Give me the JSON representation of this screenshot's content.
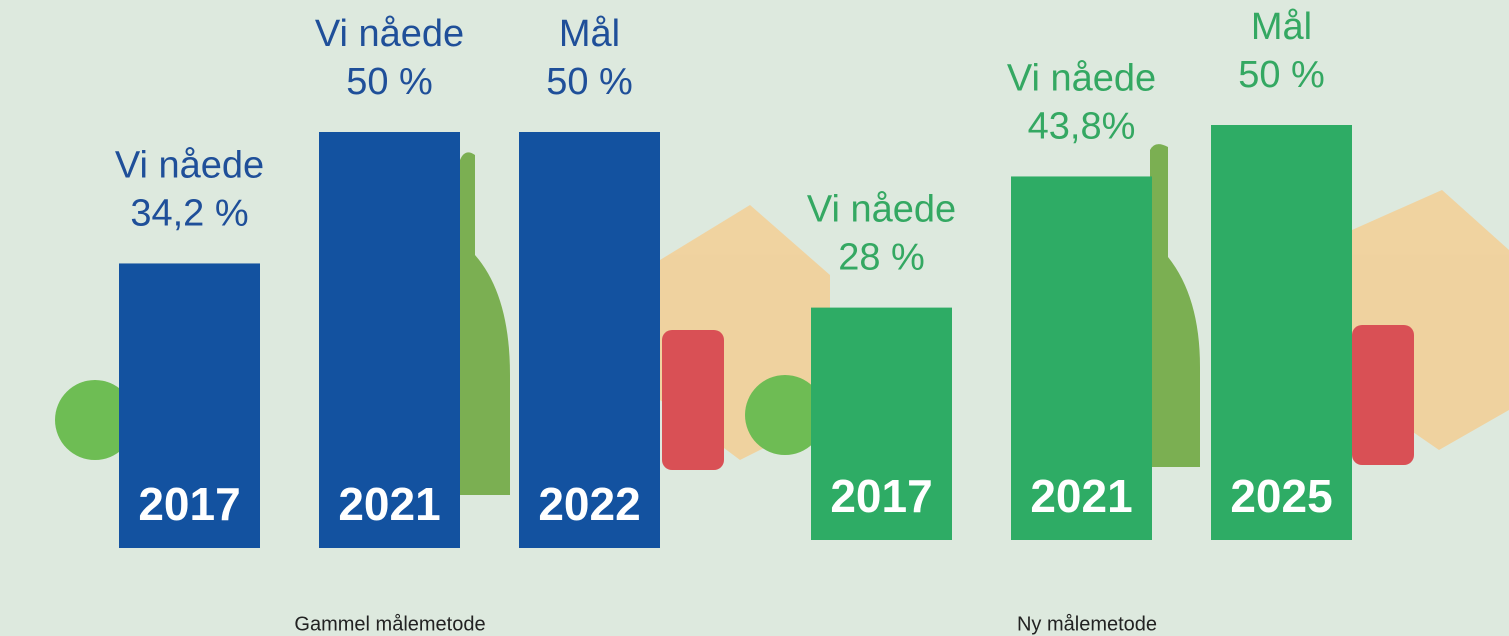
{
  "chart_data": [
    {
      "type": "bar",
      "xlabel": "Gammel målemetode",
      "color": "#1352a0",
      "label_color": "#1f4f99",
      "categories": [
        "2017",
        "2021",
        "2022"
      ],
      "annotations": [
        "Vi nåede",
        "Vi nåede",
        "Mål"
      ],
      "values": [
        34.2,
        50,
        50
      ],
      "value_labels": [
        "34,2 %",
        "50 %",
        "50 %"
      ]
    },
    {
      "type": "bar",
      "xlabel": "Ny målemetode",
      "color": "#2eac65",
      "label_color": "#34a862",
      "categories": [
        "2017",
        "2021",
        "2025"
      ],
      "annotations": [
        "Vi nåede",
        "Vi nåede",
        "Mål"
      ],
      "values": [
        28,
        43.8,
        50
      ],
      "value_labels": [
        "28 %",
        "43,8%",
        "50 %"
      ]
    }
  ]
}
